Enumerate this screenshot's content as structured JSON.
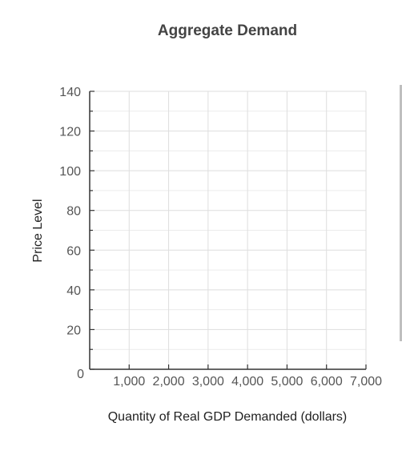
{
  "chart_data": {
    "type": "line",
    "title": "Aggregate Demand",
    "xlabel": "Quantity of Real GDP Demanded (dollars)",
    "ylabel": "Price Level",
    "xlim": [
      0,
      7000
    ],
    "ylim": [
      0,
      140
    ],
    "x_ticks": [
      1000,
      2000,
      3000,
      4000,
      5000,
      6000,
      7000
    ],
    "x_tick_labels": [
      "1,000",
      "2,000",
      "3,000",
      "4,000",
      "5,000",
      "6,000",
      "7,000"
    ],
    "y_ticks": [
      0,
      20,
      40,
      60,
      80,
      100,
      120,
      140
    ],
    "y_tick_labels": [
      "0",
      "20",
      "40",
      "60",
      "80",
      "100",
      "120",
      "140"
    ],
    "grid": true,
    "series": []
  }
}
